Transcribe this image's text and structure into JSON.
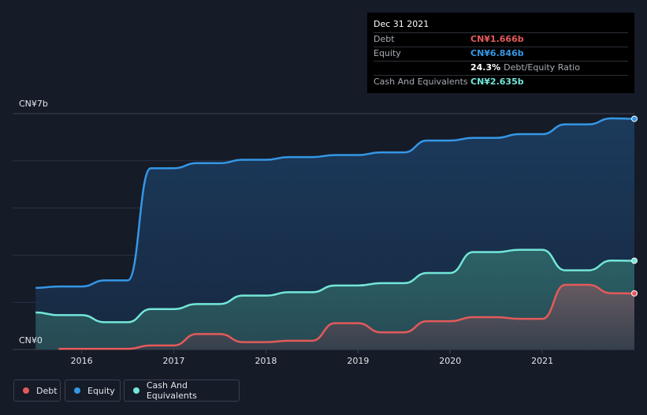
{
  "tooltip": {
    "date": "Dec 31 2021",
    "rows": [
      {
        "label": "Debt",
        "value": "CN¥1.666b",
        "color": "#e45a5a"
      },
      {
        "label": "Equity",
        "value": "CN¥6.846b",
        "color": "#3597e6"
      },
      {
        "label": "",
        "value": "24.3%",
        "suffix": "Debt/Equity Ratio",
        "color": "#ffffff"
      },
      {
        "label": "Cash And Equivalents",
        "value": "CN¥2.635b",
        "color": "#73e6d9"
      }
    ]
  },
  "legend": [
    {
      "label": "Debt",
      "color": "#e45a5a"
    },
    {
      "label": "Equity",
      "color": "#3597e6"
    },
    {
      "label": "Cash And Equivalents",
      "color": "#73e6d9"
    }
  ],
  "chart_data": {
    "type": "area",
    "title": "",
    "ylabel": "",
    "xlabel": "",
    "ylim": [
      0,
      7
    ],
    "y_unit": "CN¥b",
    "y_tick_labels": [
      {
        "value": 7,
        "label": "CN¥7b"
      },
      {
        "value": 0,
        "label": "CN¥0"
      }
    ],
    "x_ticks": [
      {
        "x": 2016,
        "label": "2016"
      },
      {
        "x": 2017,
        "label": "2017"
      },
      {
        "x": 2018,
        "label": "2018"
      },
      {
        "x": 2019,
        "label": "2019"
      },
      {
        "x": 2020,
        "label": "2020"
      },
      {
        "x": 2021,
        "label": "2021"
      }
    ],
    "xlim": [
      2015.25,
      2022.0
    ],
    "series": [
      {
        "name": "Equity",
        "color": "#3597e6",
        "points": [
          [
            2015.5,
            1.83
          ],
          [
            2015.75,
            1.87
          ],
          [
            2016.0,
            1.87
          ],
          [
            2016.25,
            2.05
          ],
          [
            2016.5,
            2.05
          ],
          [
            2016.75,
            5.38
          ],
          [
            2017.0,
            5.38
          ],
          [
            2017.25,
            5.53
          ],
          [
            2017.5,
            5.53
          ],
          [
            2017.75,
            5.63
          ],
          [
            2018.0,
            5.63
          ],
          [
            2018.25,
            5.71
          ],
          [
            2018.5,
            5.71
          ],
          [
            2018.75,
            5.77
          ],
          [
            2019.0,
            5.77
          ],
          [
            2019.25,
            5.85
          ],
          [
            2019.5,
            5.85
          ],
          [
            2019.75,
            6.2
          ],
          [
            2020.0,
            6.2
          ],
          [
            2020.25,
            6.28
          ],
          [
            2020.5,
            6.28
          ],
          [
            2020.75,
            6.39
          ],
          [
            2021.0,
            6.39
          ],
          [
            2021.25,
            6.68
          ],
          [
            2021.5,
            6.68
          ],
          [
            2021.75,
            6.86
          ],
          [
            2022.0,
            6.846
          ]
        ]
      },
      {
        "name": "Cash And Equivalents",
        "color": "#73e6d9",
        "points": [
          [
            2015.5,
            1.1
          ],
          [
            2015.75,
            1.02
          ],
          [
            2016.0,
            1.02
          ],
          [
            2016.25,
            0.81
          ],
          [
            2016.5,
            0.81
          ],
          [
            2016.75,
            1.2
          ],
          [
            2017.0,
            1.2
          ],
          [
            2017.25,
            1.35
          ],
          [
            2017.5,
            1.35
          ],
          [
            2017.75,
            1.6
          ],
          [
            2018.0,
            1.6
          ],
          [
            2018.25,
            1.7
          ],
          [
            2018.5,
            1.7
          ],
          [
            2018.75,
            1.9
          ],
          [
            2019.0,
            1.9
          ],
          [
            2019.25,
            1.97
          ],
          [
            2019.5,
            1.97
          ],
          [
            2019.75,
            2.27
          ],
          [
            2020.0,
            2.27
          ],
          [
            2020.25,
            2.89
          ],
          [
            2020.5,
            2.89
          ],
          [
            2020.75,
            2.96
          ],
          [
            2021.0,
            2.96
          ],
          [
            2021.25,
            2.35
          ],
          [
            2021.5,
            2.35
          ],
          [
            2021.75,
            2.64
          ],
          [
            2022.0,
            2.635
          ]
        ]
      },
      {
        "name": "Debt",
        "color": "#e45a5a",
        "points": [
          [
            2015.75,
            0.02
          ],
          [
            2016.0,
            0.02
          ],
          [
            2016.25,
            0.02
          ],
          [
            2016.5,
            0.02
          ],
          [
            2016.75,
            0.12
          ],
          [
            2017.0,
            0.12
          ],
          [
            2017.25,
            0.46
          ],
          [
            2017.5,
            0.46
          ],
          [
            2017.75,
            0.22
          ],
          [
            2018.0,
            0.22
          ],
          [
            2018.25,
            0.26
          ],
          [
            2018.5,
            0.26
          ],
          [
            2018.75,
            0.78
          ],
          [
            2019.0,
            0.78
          ],
          [
            2019.25,
            0.51
          ],
          [
            2019.5,
            0.51
          ],
          [
            2019.75,
            0.84
          ],
          [
            2020.0,
            0.84
          ],
          [
            2020.25,
            0.96
          ],
          [
            2020.5,
            0.96
          ],
          [
            2020.75,
            0.91
          ],
          [
            2021.0,
            0.91
          ],
          [
            2021.25,
            1.92
          ],
          [
            2021.5,
            1.92
          ],
          [
            2021.75,
            1.67
          ],
          [
            2022.0,
            1.666
          ]
        ]
      }
    ]
  }
}
